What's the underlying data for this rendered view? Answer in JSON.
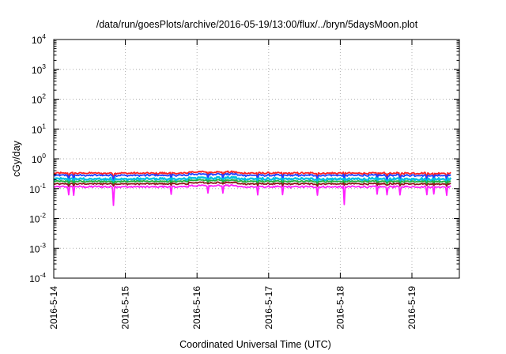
{
  "chart_data": {
    "type": "line",
    "title": "/data/run/goesPlots/archive/2016-05-19/13:00/flux/../bryn/5daysMoon.plot",
    "xlabel": "Coordinated Universal Time (UTC)",
    "ylabel": "cGy/day",
    "yscale": "log",
    "ylim": [
      0.0001,
      10000
    ],
    "xlim": [
      "2016-05-14 00:00",
      "2016-05-19 13:00"
    ],
    "grid": true,
    "y_ticks": [
      {
        "base": "10",
        "exp": "4"
      },
      {
        "base": "10",
        "exp": "3"
      },
      {
        "base": "10",
        "exp": "2"
      },
      {
        "base": "10",
        "exp": "1"
      },
      {
        "base": "10",
        "exp": "0"
      },
      {
        "base": "10",
        "exp": "-1"
      },
      {
        "base": "10",
        "exp": "-2"
      },
      {
        "base": "10",
        "exp": "-3"
      },
      {
        "base": "10",
        "exp": "-4"
      }
    ],
    "x_ticks": [
      "2016-5-14",
      "2016-5-15",
      "2016-5-16",
      "2016-5-17",
      "2016-5-18",
      "2016-5-19"
    ],
    "series": [
      {
        "color": "#ff2020",
        "base": 0.33,
        "noise": 0.06,
        "dip": 0.55
      },
      {
        "color": "#2040ff",
        "base": 0.28,
        "noise": 0.06,
        "dip": 0.5
      },
      {
        "color": "#00c0e0",
        "base": 0.21,
        "noise": 0.08,
        "dip": 0.6
      },
      {
        "color": "#20b040",
        "base": 0.175,
        "noise": 0.05,
        "dip": 0.75
      },
      {
        "color": "#8b1a1a",
        "base": 0.145,
        "noise": 0.05,
        "dip": 0.8
      },
      {
        "color": "#ff20ff",
        "base": 0.115,
        "noise": 0.06,
        "dip": 0.35
      }
    ]
  }
}
